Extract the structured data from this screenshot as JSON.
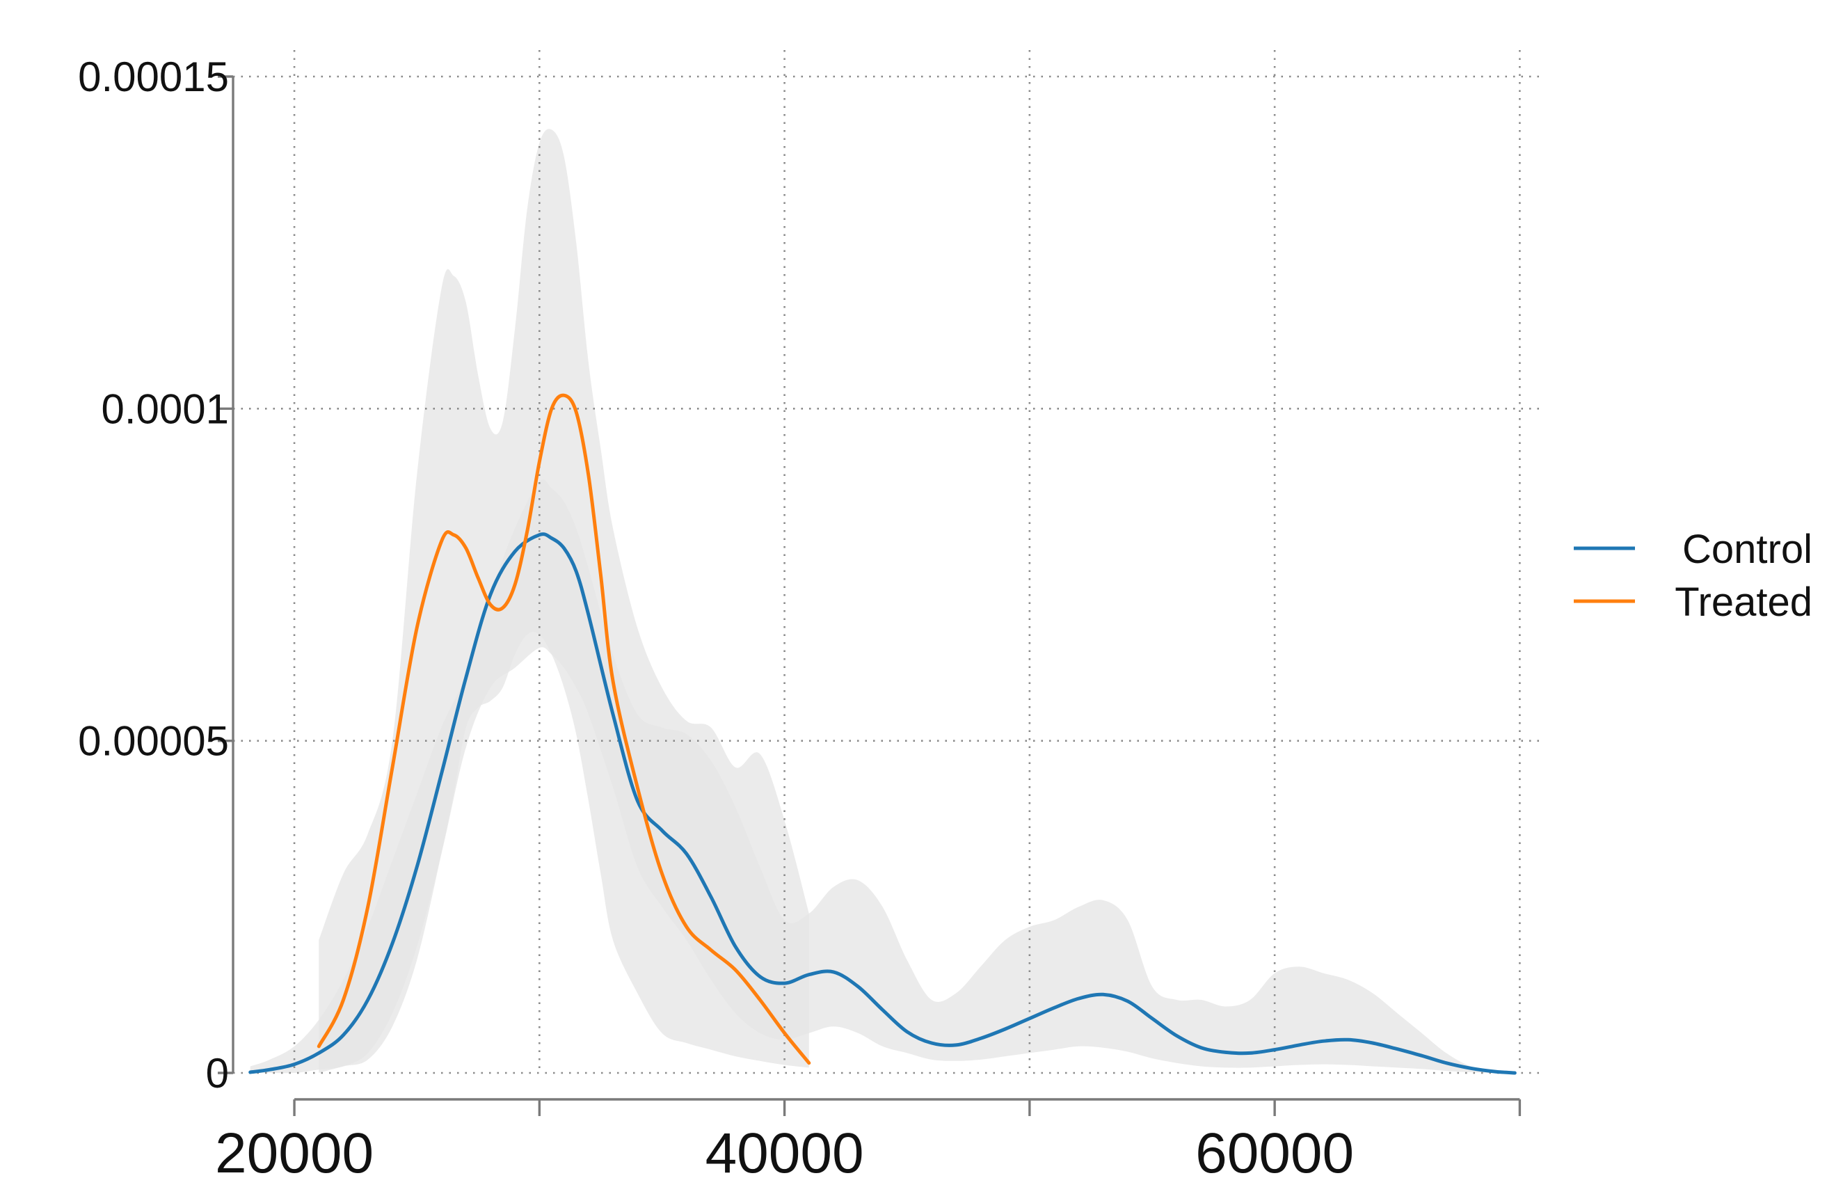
{
  "chart_data": {
    "type": "line",
    "title": "",
    "xlabel": "",
    "ylabel": "",
    "xlim": [
      17500,
      70500
    ],
    "ylim": [
      0,
      0.00015
    ],
    "x_major_ticks": [
      20000,
      40000,
      60000
    ],
    "x_major_tick_labels": [
      "20000",
      "40000",
      "60000"
    ],
    "x_minor_ticks": [
      30000,
      50000,
      70000
    ],
    "x_grid": [
      20000,
      30000,
      40000,
      50000,
      60000,
      70000
    ],
    "y_ticks": [
      0,
      5e-05,
      0.0001,
      0.00015
    ],
    "y_tick_labels": [
      "0",
      "0.00005",
      "0.0001",
      "0.00015"
    ],
    "grid": "dotted",
    "legend_position": "right",
    "band_color": "#e6e6e6",
    "series": [
      {
        "name": "Control",
        "color": "#1f77b4",
        "x": [
          18200,
          19000,
          20000,
          21000,
          22000,
          23000,
          24000,
          25000,
          26000,
          27000,
          28000,
          29000,
          30000,
          30500,
          31000,
          31500,
          32000,
          33000,
          34000,
          35000,
          36000,
          37000,
          38000,
          39000,
          40000,
          41000,
          42000,
          43000,
          44000,
          45000,
          46000,
          47000,
          48000,
          49000,
          50000,
          51000,
          52000,
          53000,
          54000,
          55000,
          56000,
          57000,
          58000,
          59000,
          60000,
          61000,
          62000,
          63000,
          64000,
          65000,
          66000,
          67000,
          68000,
          69000,
          69800
        ],
        "y": [
          1e-07,
          5e-07,
          1.3e-06,
          3e-06,
          5.7e-06,
          1.1e-05,
          1.95e-05,
          3.1e-05,
          4.5e-05,
          5.95e-05,
          7.2e-05,
          7.85e-05,
          8.1e-05,
          8.05e-05,
          7.9e-05,
          7.55e-05,
          6.9e-05,
          5.4e-05,
          4.1e-05,
          3.65e-05,
          3.3e-05,
          2.65e-05,
          1.9e-05,
          1.45e-05,
          1.35e-05,
          1.48e-05,
          1.52e-05,
          1.3e-05,
          9.5e-06,
          6.2e-06,
          4.5e-06,
          4.2e-06,
          5.2e-06,
          6.6e-06,
          8.2e-06,
          9.8e-06,
          1.12e-05,
          1.18e-05,
          1.08e-05,
          8.2e-06,
          5.6e-06,
          3.8e-06,
          3.1e-06,
          3e-06,
          3.5e-06,
          4.2e-06,
          4.8e-06,
          5e-06,
          4.5e-06,
          3.6e-06,
          2.6e-06,
          1.5e-06,
          7e-07,
          2e-07,
          0.0
        ],
        "band_upper": [
          1e-06,
          2e-06,
          4e-06,
          8e-06,
          1.4e-05,
          2.2e-05,
          3.2e-05,
          4.2e-05,
          5.2e-05,
          6e-05,
          7.2e-05,
          8.2e-05,
          8.9e-05,
          8.8e-05,
          8.6e-05,
          8.2e-05,
          7.6e-05,
          6.3e-05,
          5.4e-05,
          5.2e-05,
          5.1e-05,
          4.7e-05,
          4e-05,
          3.1e-05,
          2.3e-05,
          2.4e-05,
          2.8e-05,
          2.9e-05,
          2.5e-05,
          1.7e-05,
          1.1e-05,
          1.2e-05,
          1.6e-05,
          2e-05,
          2.2e-05,
          2.3e-05,
          2.5e-05,
          2.6e-05,
          2.3e-05,
          1.3e-05,
          1.1e-05,
          1.1e-05,
          1e-05,
          1.1e-05,
          1.5e-05,
          1.6e-05,
          1.5e-05,
          1.4e-05,
          1.2e-05,
          9e-06,
          6e-06,
          3e-06,
          1e-06,
          3e-07,
          0.0
        ],
        "band_lower": [
          0.0,
          0.0,
          0.0,
          5e-07,
          1e-06,
          3e-06,
          9e-06,
          1.9e-05,
          3.3e-05,
          4.9e-05,
          5.8e-05,
          6.1e-05,
          6.4e-05,
          6.3e-05,
          6.1e-05,
          5.8e-05,
          5.4e-05,
          4.3e-05,
          3.1e-05,
          2.5e-05,
          2e-05,
          1.4e-05,
          9e-06,
          6e-06,
          5e-06,
          6e-06,
          7e-06,
          6e-06,
          4e-06,
          3e-06,
          2e-06,
          1.8e-06,
          2e-06,
          2.5e-06,
          3e-06,
          3.5e-06,
          4e-06,
          3.8e-06,
          3.2e-06,
          2.2e-06,
          1.5e-06,
          1e-06,
          8e-07,
          8e-07,
          1e-06,
          1.2e-06,
          1.3e-06,
          1.2e-06,
          1e-06,
          8e-07,
          6e-07,
          3e-07,
          1e-07,
          0.0,
          0.0
        ]
      },
      {
        "name": "Treated",
        "color": "#ff7f0e",
        "x": [
          21000,
          22000,
          23000,
          24000,
          25000,
          26000,
          26500,
          27000,
          27500,
          28000,
          28500,
          29000,
          29500,
          30000,
          30500,
          31000,
          31500,
          32000,
          32500,
          33000,
          34000,
          35000,
          36000,
          37000,
          38000,
          39000,
          40000,
          41000
        ],
        "y": [
          4e-06,
          1.1e-05,
          2.5e-05,
          4.6e-05,
          6.7e-05,
          8e-05,
          8.1e-05,
          7.9e-05,
          7.45e-05,
          7.05e-05,
          7e-05,
          7.35e-05,
          8.15e-05,
          9.2e-05,
          0.0001,
          0.000102,
          9.95e-05,
          9e-05,
          7.5e-05,
          5.9e-05,
          4.3e-05,
          3e-05,
          2.2e-05,
          1.85e-05,
          1.55e-05,
          1.1e-05,
          6e-06,
          1.5e-06
        ],
        "band_upper": [
          2e-05,
          3e-05,
          3.6e-05,
          5e-05,
          9e-05,
          0.000118,
          0.00012,
          0.000116,
          0.000105,
          9.7e-05,
          9.8e-05,
          0.000112,
          0.00013,
          0.00014,
          0.000142,
          0.000138,
          0.000125,
          0.000107,
          9.4e-05,
          8.2e-05,
          6.7e-05,
          5.8e-05,
          5.3e-05,
          5.2e-05,
          4.6e-05,
          4.8e-05,
          3.8e-05,
          2.4e-05
        ],
        "band_lower": [
          0.0,
          1e-06,
          2e-06,
          7e-06,
          1.7e-05,
          3.3e-05,
          4.2e-05,
          5.2e-05,
          5.5e-05,
          5.6e-05,
          5.8e-05,
          6.3e-05,
          6.6e-05,
          6.6e-05,
          6.3e-05,
          5.8e-05,
          5.1e-05,
          4.1e-05,
          3e-05,
          2e-05,
          1.2e-05,
          6e-06,
          4.5e-06,
          3.5e-06,
          2.5e-06,
          1.8e-06,
          1.2e-06,
          8e-07
        ]
      }
    ]
  }
}
